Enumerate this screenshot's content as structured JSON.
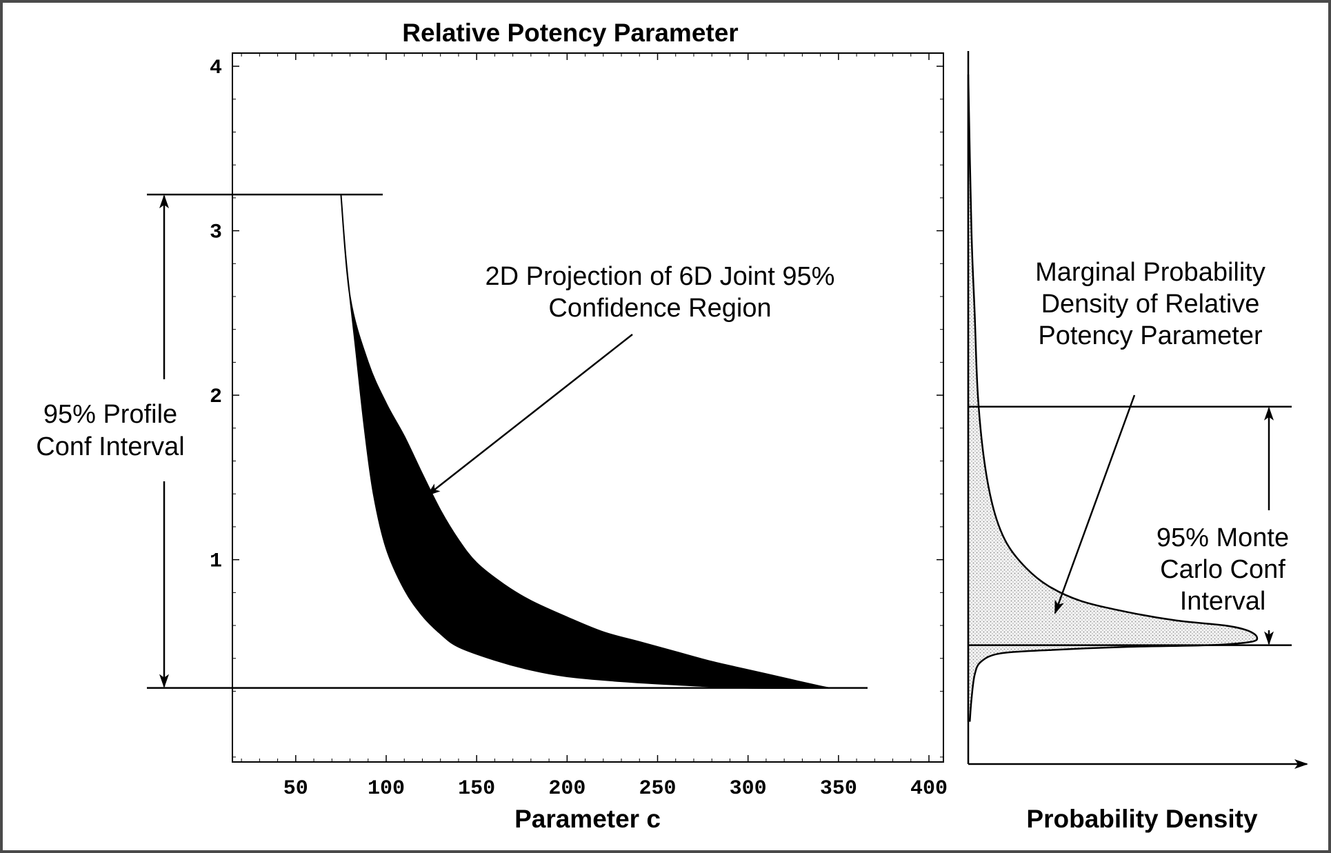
{
  "chart_data": [
    {
      "type": "area",
      "title": "Relative Potency Parameter",
      "xlabel": "Parameter c",
      "ylabel": "",
      "xlim": [
        15,
        408
      ],
      "ylim": [
        -0.23,
        4.08
      ],
      "x_ticks": [
        50,
        100,
        150,
        200,
        250,
        300,
        350,
        400
      ],
      "y_ticks": [
        1,
        2,
        3,
        4
      ],
      "grid": false,
      "series": [
        {
          "kind": "confidence-region",
          "upper": [
            [
              75,
              3.22
            ],
            [
              80,
              2.6
            ],
            [
              90,
              2.2
            ],
            [
              100,
              1.95
            ],
            [
              110,
              1.75
            ],
            [
              120,
              1.52
            ],
            [
              130,
              1.3
            ],
            [
              140,
              1.12
            ],
            [
              150,
              0.98
            ],
            [
              165,
              0.85
            ],
            [
              180,
              0.75
            ],
            [
              200,
              0.65
            ],
            [
              220,
              0.56
            ],
            [
              240,
              0.5
            ],
            [
              260,
              0.44
            ],
            [
              280,
              0.38
            ],
            [
              300,
              0.33
            ],
            [
              320,
              0.28
            ],
            [
              340,
              0.23
            ],
            [
              345,
              0.22
            ]
          ],
          "lower": [
            [
              75,
              3.22
            ],
            [
              78,
              2.8
            ],
            [
              83,
              2.3
            ],
            [
              88,
              1.8
            ],
            [
              93,
              1.4
            ],
            [
              100,
              1.07
            ],
            [
              110,
              0.82
            ],
            [
              120,
              0.66
            ],
            [
              130,
              0.55
            ],
            [
              140,
              0.47
            ],
            [
              160,
              0.39
            ],
            [
              180,
              0.33
            ],
            [
              200,
              0.29
            ],
            [
              230,
              0.26
            ],
            [
              260,
              0.24
            ],
            [
              300,
              0.22
            ],
            [
              345,
              0.22
            ]
          ]
        }
      ],
      "reference_lines": {
        "profile_interval": [
          0.22,
          3.22
        ]
      },
      "annotations": {
        "region_label": [
          "2D Projection of 6D Joint 95%",
          "Confidence Region"
        ],
        "profile_label": [
          "95% Profile",
          "Conf Interval"
        ]
      }
    },
    {
      "type": "area",
      "title": "",
      "xlabel": "Probability Density",
      "ylabel": "",
      "shared_y_axis": true,
      "density_curve": [
        [
          0.0,
          3.95
        ],
        [
          0.01,
          3.0
        ],
        [
          0.02,
          2.5
        ],
        [
          0.03,
          2.0
        ],
        [
          0.05,
          1.6
        ],
        [
          0.08,
          1.3
        ],
        [
          0.12,
          1.1
        ],
        [
          0.18,
          0.95
        ],
        [
          0.25,
          0.84
        ],
        [
          0.35,
          0.75
        ],
        [
          0.5,
          0.68
        ],
        [
          0.65,
          0.63
        ],
        [
          0.8,
          0.6
        ],
        [
          0.87,
          0.57
        ],
        [
          0.9,
          0.53
        ],
        [
          0.88,
          0.5
        ],
        [
          0.75,
          0.48
        ],
        [
          0.5,
          0.47
        ],
        [
          0.25,
          0.45
        ],
        [
          0.1,
          0.43
        ],
        [
          0.04,
          0.38
        ],
        [
          0.02,
          0.3
        ],
        [
          0.01,
          0.15
        ],
        [
          0.005,
          0.02
        ]
      ],
      "reference_lines": {
        "monte_carlo_interval": [
          0.48,
          1.93
        ]
      },
      "annotations": {
        "density_label": [
          "Marginal Probability",
          "Density of Relative",
          "Potency Parameter"
        ],
        "monte_carlo_label": [
          "95% Monte",
          "Carlo Conf",
          "Interval"
        ]
      }
    }
  ]
}
